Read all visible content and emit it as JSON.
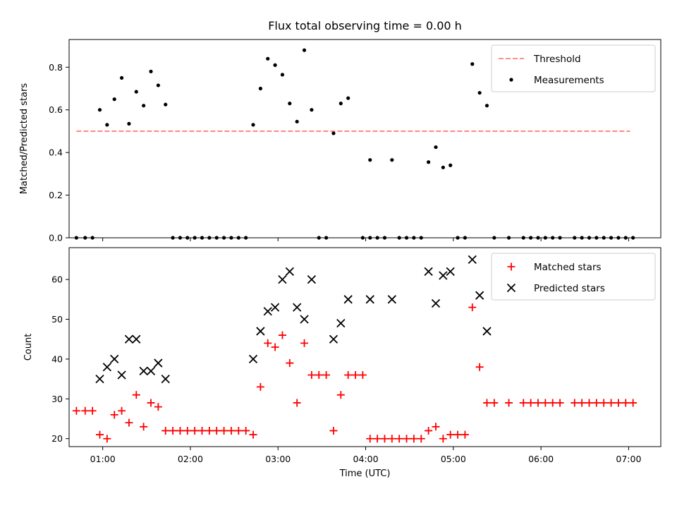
{
  "chart_data": [
    {
      "type": "scatter",
      "title": "Flux total observing time = 0.00 h",
      "xlabel": "",
      "ylabel": "Matched/Predicted stars",
      "xlim": [
        "00:37",
        "07:22"
      ],
      "ylim": [
        0,
        0.93
      ],
      "y_ticks": [
        "0.0",
        "0.2",
        "0.4",
        "0.6",
        "0.8"
      ],
      "legend_position": "top-right",
      "threshold": {
        "name": "Threshold",
        "value": 0.5,
        "x_range": [
          "00:42",
          "07:01"
        ],
        "color": "#ff7f7f"
      },
      "series": [
        {
          "name": "Measurements",
          "color": "#000000",
          "marker": "dot",
          "points": [
            {
              "x": "00:42",
              "y": 0
            },
            {
              "x": "00:48",
              "y": 0
            },
            {
              "x": "00:53",
              "y": 0
            },
            {
              "x": "00:58",
              "y": 0.6
            },
            {
              "x": "01:03",
              "y": 0.53
            },
            {
              "x": "01:08",
              "y": 0.65
            },
            {
              "x": "01:13",
              "y": 0.75
            },
            {
              "x": "01:18",
              "y": 0.535
            },
            {
              "x": "01:23",
              "y": 0.685
            },
            {
              "x": "01:28",
              "y": 0.62
            },
            {
              "x": "01:33",
              "y": 0.78
            },
            {
              "x": "01:38",
              "y": 0.715
            },
            {
              "x": "01:43",
              "y": 0.625
            },
            {
              "x": "01:48",
              "y": 0
            },
            {
              "x": "01:53",
              "y": 0
            },
            {
              "x": "01:58",
              "y": 0
            },
            {
              "x": "02:03",
              "y": 0
            },
            {
              "x": "02:08",
              "y": 0
            },
            {
              "x": "02:13",
              "y": 0
            },
            {
              "x": "02:18",
              "y": 0
            },
            {
              "x": "02:23",
              "y": 0
            },
            {
              "x": "02:28",
              "y": 0
            },
            {
              "x": "02:33",
              "y": 0
            },
            {
              "x": "02:38",
              "y": 0
            },
            {
              "x": "02:43",
              "y": 0.53
            },
            {
              "x": "02:48",
              "y": 0.7
            },
            {
              "x": "02:53",
              "y": 0.84
            },
            {
              "x": "02:58",
              "y": 0.81
            },
            {
              "x": "03:03",
              "y": 0.765
            },
            {
              "x": "03:08",
              "y": 0.63
            },
            {
              "x": "03:13",
              "y": 0.545
            },
            {
              "x": "03:18",
              "y": 0.88
            },
            {
              "x": "03:23",
              "y": 0.6
            },
            {
              "x": "03:28",
              "y": 0
            },
            {
              "x": "03:33",
              "y": 0
            },
            {
              "x": "03:38",
              "y": 0.49
            },
            {
              "x": "03:43",
              "y": 0.63
            },
            {
              "x": "03:48",
              "y": 0.655
            },
            {
              "x": "03:58",
              "y": 0
            },
            {
              "x": "04:03",
              "y": 0
            },
            {
              "x": "04:03",
              "y": 0.365
            },
            {
              "x": "04:08",
              "y": 0
            },
            {
              "x": "04:13",
              "y": 0
            },
            {
              "x": "04:18",
              "y": 0.365
            },
            {
              "x": "04:23",
              "y": 0
            },
            {
              "x": "04:28",
              "y": 0
            },
            {
              "x": "04:33",
              "y": 0
            },
            {
              "x": "04:38",
              "y": 0
            },
            {
              "x": "04:43",
              "y": 0.355
            },
            {
              "x": "04:48",
              "y": 0.425
            },
            {
              "x": "04:53",
              "y": 0.33
            },
            {
              "x": "04:58",
              "y": 0.34
            },
            {
              "x": "05:03",
              "y": 0
            },
            {
              "x": "05:08",
              "y": 0
            },
            {
              "x": "05:13",
              "y": 0.815
            },
            {
              "x": "05:18",
              "y": 0.68
            },
            {
              "x": "05:23",
              "y": 0.62
            },
            {
              "x": "05:28",
              "y": 0
            },
            {
              "x": "05:38",
              "y": 0
            },
            {
              "x": "05:48",
              "y": 0
            },
            {
              "x": "05:53",
              "y": 0
            },
            {
              "x": "05:58",
              "y": 0
            },
            {
              "x": "06:03",
              "y": 0
            },
            {
              "x": "06:08",
              "y": 0
            },
            {
              "x": "06:13",
              "y": 0
            },
            {
              "x": "06:23",
              "y": 0
            },
            {
              "x": "06:28",
              "y": 0
            },
            {
              "x": "06:33",
              "y": 0
            },
            {
              "x": "06:38",
              "y": 0
            },
            {
              "x": "06:43",
              "y": 0
            },
            {
              "x": "06:48",
              "y": 0
            },
            {
              "x": "06:53",
              "y": 0
            },
            {
              "x": "06:58",
              "y": 0
            },
            {
              "x": "07:03",
              "y": 0
            }
          ]
        }
      ]
    },
    {
      "type": "scatter",
      "title": "",
      "xlabel": "Time (UTC)",
      "ylabel": "Count",
      "xlim": [
        "00:37",
        "07:22"
      ],
      "ylim": [
        18,
        68
      ],
      "x_ticks": [
        "01:00",
        "02:00",
        "03:00",
        "04:00",
        "05:00",
        "06:00",
        "07:00"
      ],
      "y_ticks": [
        "20",
        "30",
        "40",
        "50",
        "60"
      ],
      "legend_position": "top-right",
      "series": [
        {
          "name": "Matched stars",
          "color": "#ff0000",
          "marker": "plus",
          "points": [
            {
              "x": "00:42",
              "y": 27
            },
            {
              "x": "00:48",
              "y": 27
            },
            {
              "x": "00:53",
              "y": 27
            },
            {
              "x": "00:58",
              "y": 21
            },
            {
              "x": "01:03",
              "y": 20
            },
            {
              "x": "01:08",
              "y": 26
            },
            {
              "x": "01:13",
              "y": 27
            },
            {
              "x": "01:18",
              "y": 24
            },
            {
              "x": "01:23",
              "y": 31
            },
            {
              "x": "01:28",
              "y": 23
            },
            {
              "x": "01:33",
              "y": 29
            },
            {
              "x": "01:38",
              "y": 28
            },
            {
              "x": "01:43",
              "y": 22
            },
            {
              "x": "01:48",
              "y": 22
            },
            {
              "x": "01:53",
              "y": 22
            },
            {
              "x": "01:58",
              "y": 22
            },
            {
              "x": "02:03",
              "y": 22
            },
            {
              "x": "02:08",
              "y": 22
            },
            {
              "x": "02:13",
              "y": 22
            },
            {
              "x": "02:18",
              "y": 22
            },
            {
              "x": "02:23",
              "y": 22
            },
            {
              "x": "02:28",
              "y": 22
            },
            {
              "x": "02:33",
              "y": 22
            },
            {
              "x": "02:38",
              "y": 22
            },
            {
              "x": "02:43",
              "y": 21
            },
            {
              "x": "02:48",
              "y": 33
            },
            {
              "x": "02:53",
              "y": 44
            },
            {
              "x": "02:58",
              "y": 43
            },
            {
              "x": "03:03",
              "y": 46
            },
            {
              "x": "03:08",
              "y": 39
            },
            {
              "x": "03:13",
              "y": 29
            },
            {
              "x": "03:18",
              "y": 44
            },
            {
              "x": "03:23",
              "y": 36
            },
            {
              "x": "03:28",
              "y": 36
            },
            {
              "x": "03:33",
              "y": 36
            },
            {
              "x": "03:38",
              "y": 22
            },
            {
              "x": "03:43",
              "y": 31
            },
            {
              "x": "03:48",
              "y": 36
            },
            {
              "x": "03:53",
              "y": 36
            },
            {
              "x": "03:58",
              "y": 36
            },
            {
              "x": "04:03",
              "y": 20
            },
            {
              "x": "04:08",
              "y": 20
            },
            {
              "x": "04:13",
              "y": 20
            },
            {
              "x": "04:18",
              "y": 20
            },
            {
              "x": "04:23",
              "y": 20
            },
            {
              "x": "04:28",
              "y": 20
            },
            {
              "x": "04:33",
              "y": 20
            },
            {
              "x": "04:38",
              "y": 20
            },
            {
              "x": "04:43",
              "y": 22
            },
            {
              "x": "04:48",
              "y": 23
            },
            {
              "x": "04:53",
              "y": 20
            },
            {
              "x": "04:58",
              "y": 21
            },
            {
              "x": "05:03",
              "y": 21
            },
            {
              "x": "05:08",
              "y": 21
            },
            {
              "x": "05:13",
              "y": 53
            },
            {
              "x": "05:18",
              "y": 38
            },
            {
              "x": "05:23",
              "y": 29
            },
            {
              "x": "05:28",
              "y": 29
            },
            {
              "x": "05:38",
              "y": 29
            },
            {
              "x": "05:48",
              "y": 29
            },
            {
              "x": "05:53",
              "y": 29
            },
            {
              "x": "05:58",
              "y": 29
            },
            {
              "x": "06:03",
              "y": 29
            },
            {
              "x": "06:08",
              "y": 29
            },
            {
              "x": "06:13",
              "y": 29
            },
            {
              "x": "06:23",
              "y": 29
            },
            {
              "x": "06:28",
              "y": 29
            },
            {
              "x": "06:33",
              "y": 29
            },
            {
              "x": "06:38",
              "y": 29
            },
            {
              "x": "06:43",
              "y": 29
            },
            {
              "x": "06:48",
              "y": 29
            },
            {
              "x": "06:53",
              "y": 29
            },
            {
              "x": "06:58",
              "y": 29
            },
            {
              "x": "07:03",
              "y": 29
            }
          ]
        },
        {
          "name": "Predicted stars",
          "color": "#000000",
          "marker": "x",
          "points": [
            {
              "x": "00:58",
              "y": 35
            },
            {
              "x": "01:03",
              "y": 38
            },
            {
              "x": "01:08",
              "y": 40
            },
            {
              "x": "01:13",
              "y": 36
            },
            {
              "x": "01:18",
              "y": 45
            },
            {
              "x": "01:23",
              "y": 45
            },
            {
              "x": "01:28",
              "y": 37
            },
            {
              "x": "01:33",
              "y": 37
            },
            {
              "x": "01:38",
              "y": 39
            },
            {
              "x": "01:43",
              "y": 35
            },
            {
              "x": "02:43",
              "y": 40
            },
            {
              "x": "02:48",
              "y": 47
            },
            {
              "x": "02:53",
              "y": 52
            },
            {
              "x": "02:58",
              "y": 53
            },
            {
              "x": "03:03",
              "y": 60
            },
            {
              "x": "03:08",
              "y": 62
            },
            {
              "x": "03:13",
              "y": 53
            },
            {
              "x": "03:18",
              "y": 50
            },
            {
              "x": "03:23",
              "y": 60
            },
            {
              "x": "03:38",
              "y": 45
            },
            {
              "x": "03:43",
              "y": 49
            },
            {
              "x": "03:48",
              "y": 55
            },
            {
              "x": "04:03",
              "y": 55
            },
            {
              "x": "04:18",
              "y": 55
            },
            {
              "x": "04:43",
              "y": 62
            },
            {
              "x": "04:48",
              "y": 54
            },
            {
              "x": "04:53",
              "y": 61
            },
            {
              "x": "04:58",
              "y": 62
            },
            {
              "x": "05:13",
              "y": 65
            },
            {
              "x": "05:18",
              "y": 56
            },
            {
              "x": "05:23",
              "y": 47
            }
          ]
        }
      ]
    }
  ]
}
